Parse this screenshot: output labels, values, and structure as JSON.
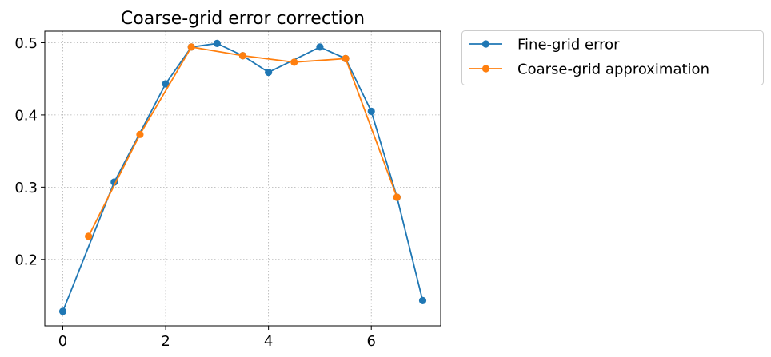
{
  "chart_data": {
    "type": "line",
    "title": "Coarse-grid error correction",
    "xlabel": "",
    "ylabel": "",
    "xlim": [
      -0.35,
      7.35
    ],
    "ylim": [
      0.108,
      0.516
    ],
    "xticks": [
      0,
      2,
      4,
      6
    ],
    "yticks": [
      0.2,
      0.3,
      0.4,
      0.5
    ],
    "xtick_labels": [
      "0",
      "2",
      "4",
      "6"
    ],
    "ytick_labels": [
      "0.2",
      "0.3",
      "0.4",
      "0.5"
    ],
    "grid": true,
    "legend_position": "outside-top-right",
    "series": [
      {
        "name": "Fine-grid error",
        "color": "#1f77b4",
        "marker": "circle",
        "x": [
          0,
          1,
          2,
          2.5,
          3,
          3.5,
          4,
          5,
          5.5,
          6,
          6.5,
          7
        ],
        "y": [
          0.128,
          0.307,
          0.443,
          0.494,
          0.499,
          0.482,
          0.459,
          0.494,
          0.478,
          0.405,
          0.286,
          0.143
        ]
      },
      {
        "name": "Coarse-grid approximation",
        "color": "#ff7f0e",
        "marker": "circle",
        "x": [
          0.5,
          1.5,
          2.5,
          3.5,
          4.5,
          5.5,
          6.5
        ],
        "y": [
          0.232,
          0.373,
          0.494,
          0.482,
          0.473,
          0.478,
          0.286
        ]
      }
    ]
  }
}
